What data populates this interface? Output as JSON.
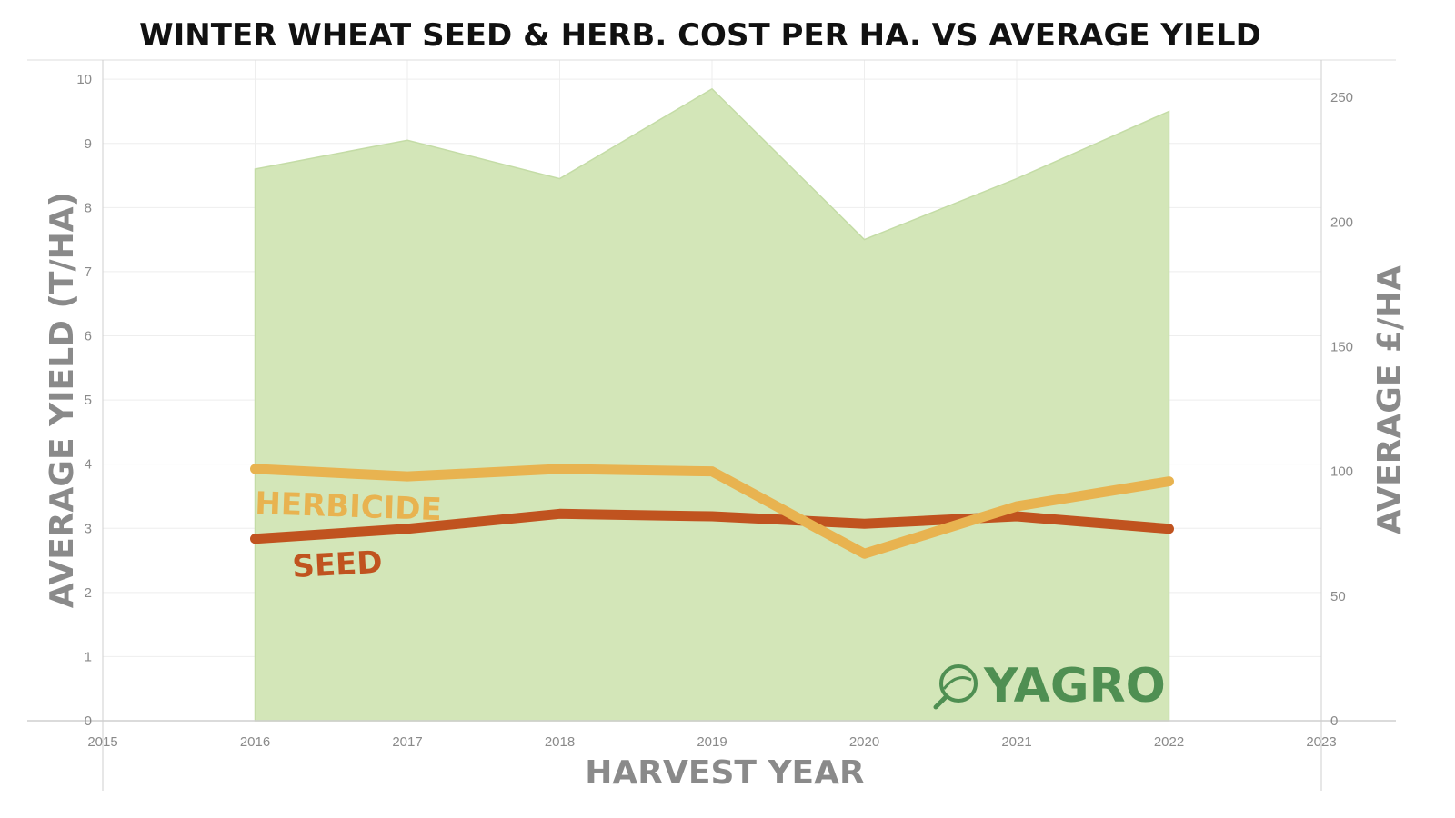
{
  "chart_data": {
    "type": "area+line",
    "title": "WINTER WHEAT SEED & HERB. COST PER HA. VS AVERAGE YIELD",
    "xlabel": "HARVEST YEAR",
    "ylabel_left": "AVERAGE YIELD (T/HA)",
    "ylabel_right": "AVERAGE  £/HA",
    "x_ticks": [
      "2015",
      "2016",
      "2017",
      "2018",
      "2019",
      "2020",
      "2021",
      "2022",
      "2023"
    ],
    "xlim": [
      2015,
      2023
    ],
    "y_left_ticks": [
      "0",
      "1",
      "2",
      "3",
      "4",
      "5",
      "6",
      "7",
      "8",
      "9",
      "10"
    ],
    "ylim_left": [
      0,
      10.3
    ],
    "y_right_ticks": [
      "0",
      "50",
      "100",
      "150",
      "200",
      "250"
    ],
    "ylim_right": [
      0,
      265
    ],
    "grid": true,
    "x": [
      2016,
      2017,
      2018,
      2019,
      2020,
      2021,
      2022
    ],
    "series": [
      {
        "name": "",
        "kind": "area",
        "axis": "left",
        "color": "#d3e6b8",
        "values": [
          8.6,
          9.05,
          8.45,
          9.85,
          7.5,
          8.45,
          9.5
        ]
      },
      {
        "name": "HERBICIDE",
        "kind": "line",
        "axis": "right",
        "color": "#e8b350",
        "values": [
          101,
          98,
          101,
          100,
          67,
          86,
          96
        ]
      },
      {
        "name": "SEED",
        "kind": "line",
        "axis": "right",
        "color": "#c0531f",
        "values": [
          73,
          77,
          83,
          82,
          79,
          82,
          77
        ]
      }
    ]
  },
  "branding": {
    "logo_text": "YAGRO",
    "logo_color": "#4f8f52"
  }
}
